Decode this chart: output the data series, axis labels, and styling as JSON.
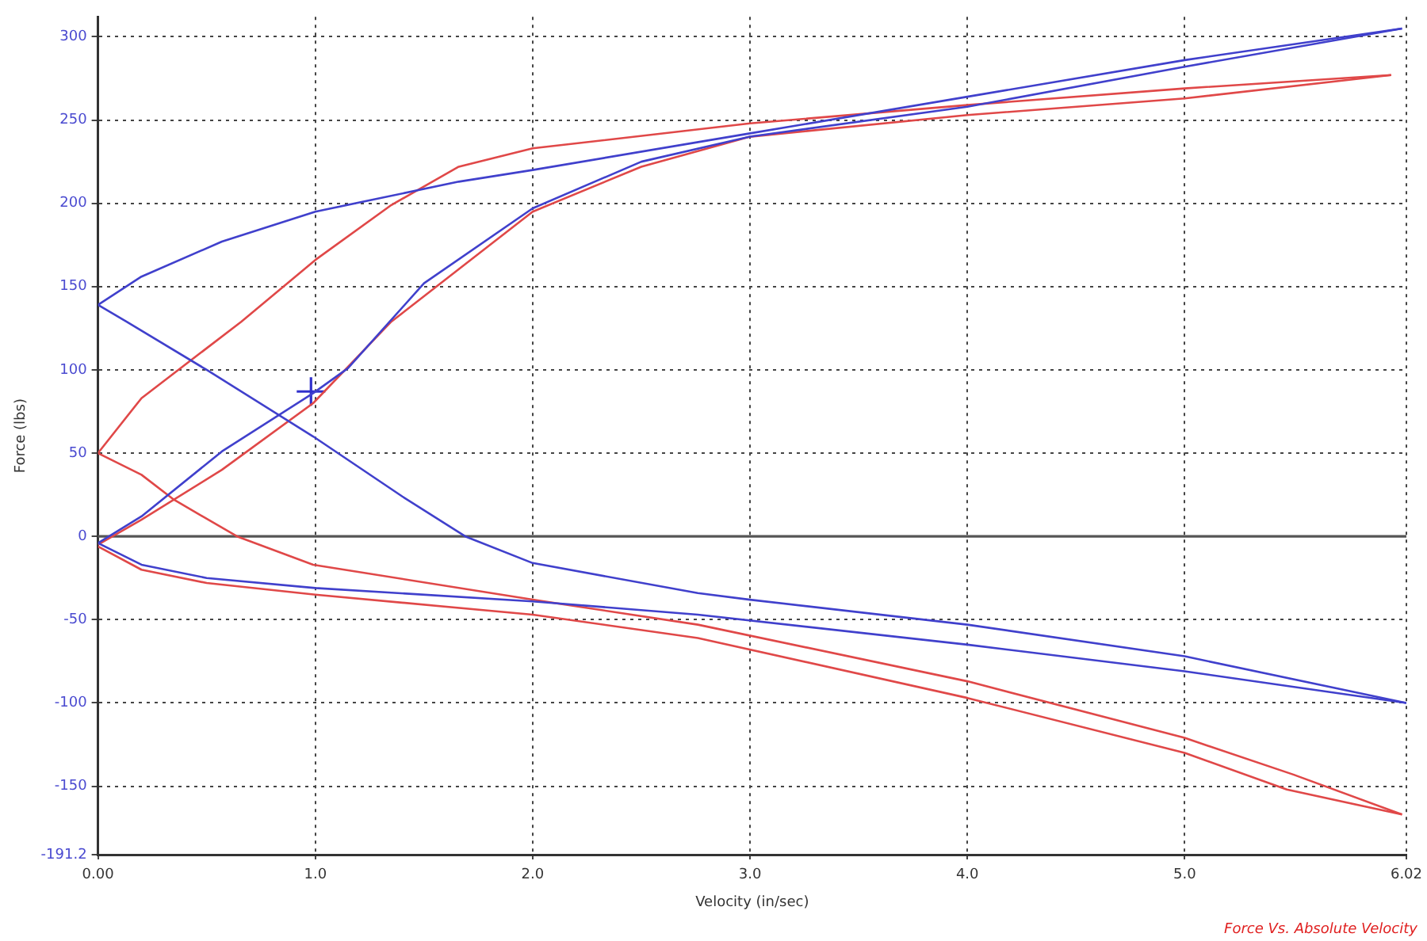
{
  "chart_data": {
    "type": "line",
    "title": "Force Vs. Absolute Velocity",
    "xlabel": "Velocity (in/sec)",
    "ylabel": "Force (lbs)",
    "xlim": [
      0,
      6.02
    ],
    "xticks": [
      {
        "value": 0,
        "label": "0.00"
      },
      {
        "value": 1,
        "label": "1.0"
      },
      {
        "value": 2,
        "label": "2.0"
      },
      {
        "value": 3,
        "label": "3.0"
      },
      {
        "value": 4,
        "label": "4.0"
      },
      {
        "value": 5,
        "label": "5.0"
      },
      6.02
    ],
    "ylim": [
      -191.2,
      312
    ],
    "yticks": [
      -191.2,
      -150,
      -100,
      -50,
      0,
      50,
      100,
      150,
      200,
      250,
      300
    ],
    "grid": true,
    "line_style": "solid",
    "marker": "none",
    "ref_lines": [
      {
        "axis": "y",
        "value": 0,
        "color": "#555555"
      }
    ],
    "series": [
      {
        "color": "#4040cc",
        "x": [
          0,
          0.2,
          0.57,
          0.99,
          1.15,
          1.5,
          2.0,
          2.5,
          3.0,
          4.0,
          5.0,
          6.0
        ],
        "values": [
          -4,
          12,
          51,
          86,
          101,
          152,
          197,
          225,
          240,
          258,
          282,
          305
        ]
      },
      {
        "color": "#4040cc",
        "x": [
          0,
          0.2,
          0.57,
          1.0,
          1.66,
          2.0,
          3.0,
          4.0,
          5.0,
          6.0
        ],
        "values": [
          139,
          156,
          177,
          195,
          213,
          220,
          242,
          264,
          286,
          305
        ]
      },
      {
        "color": "#4040cc",
        "x": [
          0,
          0.13,
          0.5,
          0.99,
          1.4,
          1.69,
          2.0,
          2.76,
          3.0,
          4.0,
          5.0,
          6.02
        ],
        "values": [
          139,
          129,
          100,
          60,
          24,
          0,
          -16,
          -34,
          -38,
          -53,
          -72,
          -100
        ]
      },
      {
        "color": "#4040cc",
        "x": [
          0,
          0.2,
          0.5,
          1.0,
          2.0,
          2.76,
          4.0,
          5.0,
          6.02
        ],
        "values": [
          -4,
          -17,
          -25,
          -31,
          -39,
          -47,
          -65,
          -81,
          -100
        ]
      },
      {
        "color": "#e04848",
        "x": [
          0,
          0.2,
          0.57,
          0.99,
          1.35,
          2.0,
          2.5,
          3.0,
          4.0,
          5.0,
          5.95
        ],
        "values": [
          -5,
          10,
          40,
          80,
          129,
          195,
          222,
          240,
          253,
          263,
          277
        ]
      },
      {
        "color": "#e04848",
        "x": [
          0,
          0.2,
          0.66,
          1.0,
          1.35,
          1.66,
          2.0,
          3.0,
          4.0,
          5.0,
          5.95
        ],
        "values": [
          50,
          83,
          129,
          166,
          199,
          222,
          233,
          248,
          259,
          269,
          277
        ]
      },
      {
        "color": "#e04848",
        "x": [
          0,
          0.2,
          0.35,
          0.64,
          0.99,
          2.0,
          2.76,
          4.0,
          5.0,
          5.5,
          6.0
        ],
        "values": [
          50,
          37,
          22,
          0,
          -17,
          -38,
          -53,
          -87,
          -121,
          -143,
          -167
        ]
      },
      {
        "color": "#e04848",
        "x": [
          0,
          0.2,
          0.5,
          1.0,
          2.0,
          2.76,
          4.0,
          5.0,
          5.47,
          6.0
        ],
        "values": [
          -6,
          -20,
          -28,
          -35,
          -47,
          -61,
          -97,
          -130,
          -152,
          -167
        ]
      },
      {
        "type": "scatter",
        "color": "#3030cc",
        "marker": "cross",
        "x": [
          0.98
        ],
        "values": [
          87
        ]
      }
    ]
  }
}
